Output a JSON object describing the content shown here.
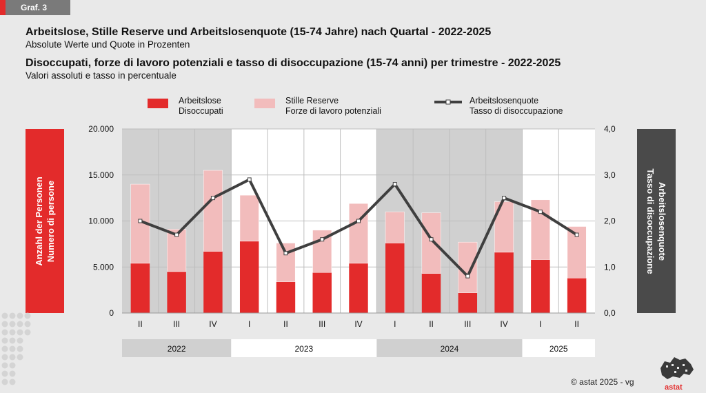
{
  "badge": "Graf. 3",
  "title_de": "Arbeitslose, Stille Reserve und Arbeitslosenquote (15-74 Jahre) nach Quartal - 2022-2025",
  "subtitle_de": "Absolute Werte und Quote in Prozenten",
  "title_it": "Disoccupati, forze di lavoro potenziali e tasso di disoccupazione (15-74 anni) per trimestre - 2022-2025",
  "subtitle_it": "Valori assoluti e tasso in percentuale",
  "legend": [
    {
      "de": "Arbeitslose",
      "it": "Disoccupati"
    },
    {
      "de": "Stille Reserve",
      "it": "Forze di lavoro potenziali"
    },
    {
      "de": "Arbeitslosenquote",
      "it": "Tasso di disoccupazione"
    }
  ],
  "left_axis_label": {
    "de": "Anzahl der Personen",
    "it": "Numero di persone"
  },
  "right_axis_label": {
    "de": "Arbeitslosenquote",
    "it": "Tasso di disoccupazione"
  },
  "footer": "© astat 2025 - vg",
  "logo": "astat",
  "colors": {
    "unemployed": "#e32b2b",
    "reserve": "#f2bcbc",
    "rate": "#3f3f3f",
    "shade": "#d0d0d0"
  },
  "chart_data": {
    "type": "bar",
    "stacked": true,
    "categories": [
      "II",
      "III",
      "IV",
      "I",
      "II",
      "III",
      "IV",
      "I",
      "II",
      "III",
      "IV",
      "I",
      "II"
    ],
    "years": [
      {
        "label": "2022",
        "count": 3,
        "shaded": true
      },
      {
        "label": "2023",
        "count": 4,
        "shaded": false
      },
      {
        "label": "2024",
        "count": 4,
        "shaded": true
      },
      {
        "label": "2025",
        "count": 2,
        "shaded": false
      }
    ],
    "series": [
      {
        "name": "Arbeitslose / Disoccupati",
        "type": "bar",
        "axis": "left",
        "values": [
          5400,
          4500,
          6700,
          7800,
          3400,
          4400,
          5400,
          7600,
          4300,
          2200,
          6600,
          5800,
          3800
        ]
      },
      {
        "name": "Stille Reserve / Forze di lavoro potenziali",
        "type": "bar",
        "axis": "left",
        "values": [
          8600,
          4600,
          8800,
          5000,
          4200,
          4600,
          6500,
          3400,
          6600,
          5500,
          5500,
          6500,
          5600
        ]
      },
      {
        "name": "Arbeitslosenquote / Tasso di disoccupazione",
        "type": "line",
        "axis": "right",
        "values": [
          2.0,
          1.7,
          2.5,
          2.9,
          1.3,
          1.6,
          2.0,
          2.8,
          1.6,
          0.8,
          2.5,
          2.2,
          1.7
        ]
      }
    ],
    "y_left": {
      "min": 0,
      "max": 20000,
      "ticks": [
        "0",
        "5.000",
        "10.000",
        "15.000",
        "20.000"
      ]
    },
    "y_right": {
      "min": 0,
      "max": 4,
      "ticks": [
        "0,0",
        "1,0",
        "2,0",
        "3,0",
        "4,0"
      ]
    }
  }
}
